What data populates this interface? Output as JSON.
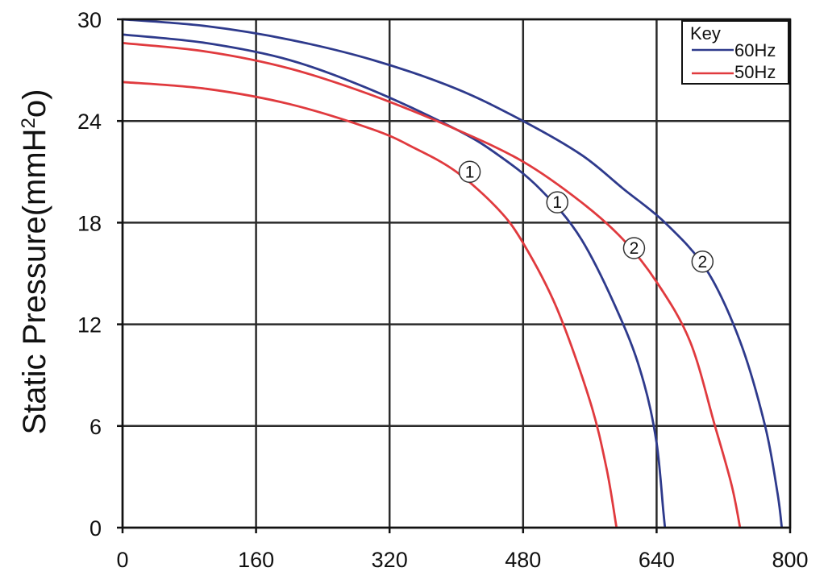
{
  "chart_data": {
    "type": "line",
    "title": "",
    "xlabel": "",
    "ylabel": "Static Pressure(mmH",
    "ylabel_sup": "2",
    "ylabel_end": "o)",
    "xlim": [
      0,
      800
    ],
    "ylim": [
      0,
      30
    ],
    "x_ticks": [
      "0",
      "160",
      "320",
      "480",
      "640",
      "800"
    ],
    "y_ticks": [
      "0",
      "6",
      "12",
      "18",
      "24",
      "30"
    ],
    "grid": true,
    "legend": {
      "title": "Key",
      "position": "top-right",
      "entries": [
        {
          "label": "60Hz",
          "color": "#2e3a8c"
        },
        {
          "label": "50Hz",
          "color": "#e03a3e"
        }
      ]
    },
    "series": [
      {
        "curve": "1",
        "frequency": "60Hz",
        "color": "#2e3a8c",
        "marker": {
          "label": "1",
          "x": 521,
          "y": 19.2
        },
        "points": [
          [
            0,
            29.1
          ],
          [
            100,
            28.6
          ],
          [
            200,
            27.6
          ],
          [
            300,
            25.8
          ],
          [
            400,
            23.5
          ],
          [
            450,
            22.0
          ],
          [
            500,
            20.0
          ],
          [
            550,
            17.0
          ],
          [
            600,
            12.0
          ],
          [
            625,
            8.5
          ],
          [
            640,
            5.0
          ],
          [
            648,
            1.0
          ],
          [
            650,
            0
          ]
        ]
      },
      {
        "curve": "2",
        "frequency": "60Hz",
        "color": "#2e3a8c",
        "marker": {
          "label": "2",
          "x": 695,
          "y": 15.7
        },
        "points": [
          [
            0,
            30.0
          ],
          [
            100,
            29.6
          ],
          [
            200,
            28.8
          ],
          [
            300,
            27.6
          ],
          [
            400,
            25.9
          ],
          [
            480,
            24.0
          ],
          [
            550,
            22.0
          ],
          [
            600,
            20.0
          ],
          [
            650,
            18.0
          ],
          [
            700,
            15.2
          ],
          [
            740,
            11.0
          ],
          [
            770,
            6.0
          ],
          [
            785,
            2.0
          ],
          [
            790,
            0
          ]
        ]
      },
      {
        "curve": "1",
        "frequency": "50Hz",
        "color": "#e03a3e",
        "marker": {
          "label": "1",
          "x": 416,
          "y": 21.0
        },
        "points": [
          [
            0,
            26.3
          ],
          [
            100,
            25.9
          ],
          [
            200,
            25.0
          ],
          [
            300,
            23.5
          ],
          [
            350,
            22.4
          ],
          [
            400,
            21.0
          ],
          [
            450,
            18.8
          ],
          [
            480,
            16.8
          ],
          [
            520,
            13.0
          ],
          [
            560,
            7.5
          ],
          [
            580,
            3.5
          ],
          [
            592,
            0
          ]
        ]
      },
      {
        "curve": "2",
        "frequency": "50Hz",
        "color": "#e03a3e",
        "marker": {
          "label": "2",
          "x": 613,
          "y": 16.5
        },
        "points": [
          [
            0,
            28.6
          ],
          [
            100,
            28.1
          ],
          [
            200,
            27.1
          ],
          [
            300,
            25.5
          ],
          [
            400,
            23.5
          ],
          [
            480,
            21.6
          ],
          [
            550,
            19.2
          ],
          [
            600,
            17.0
          ],
          [
            640,
            14.5
          ],
          [
            680,
            11.0
          ],
          [
            710,
            6.0
          ],
          [
            730,
            2.5
          ],
          [
            740,
            0
          ]
        ]
      }
    ]
  }
}
